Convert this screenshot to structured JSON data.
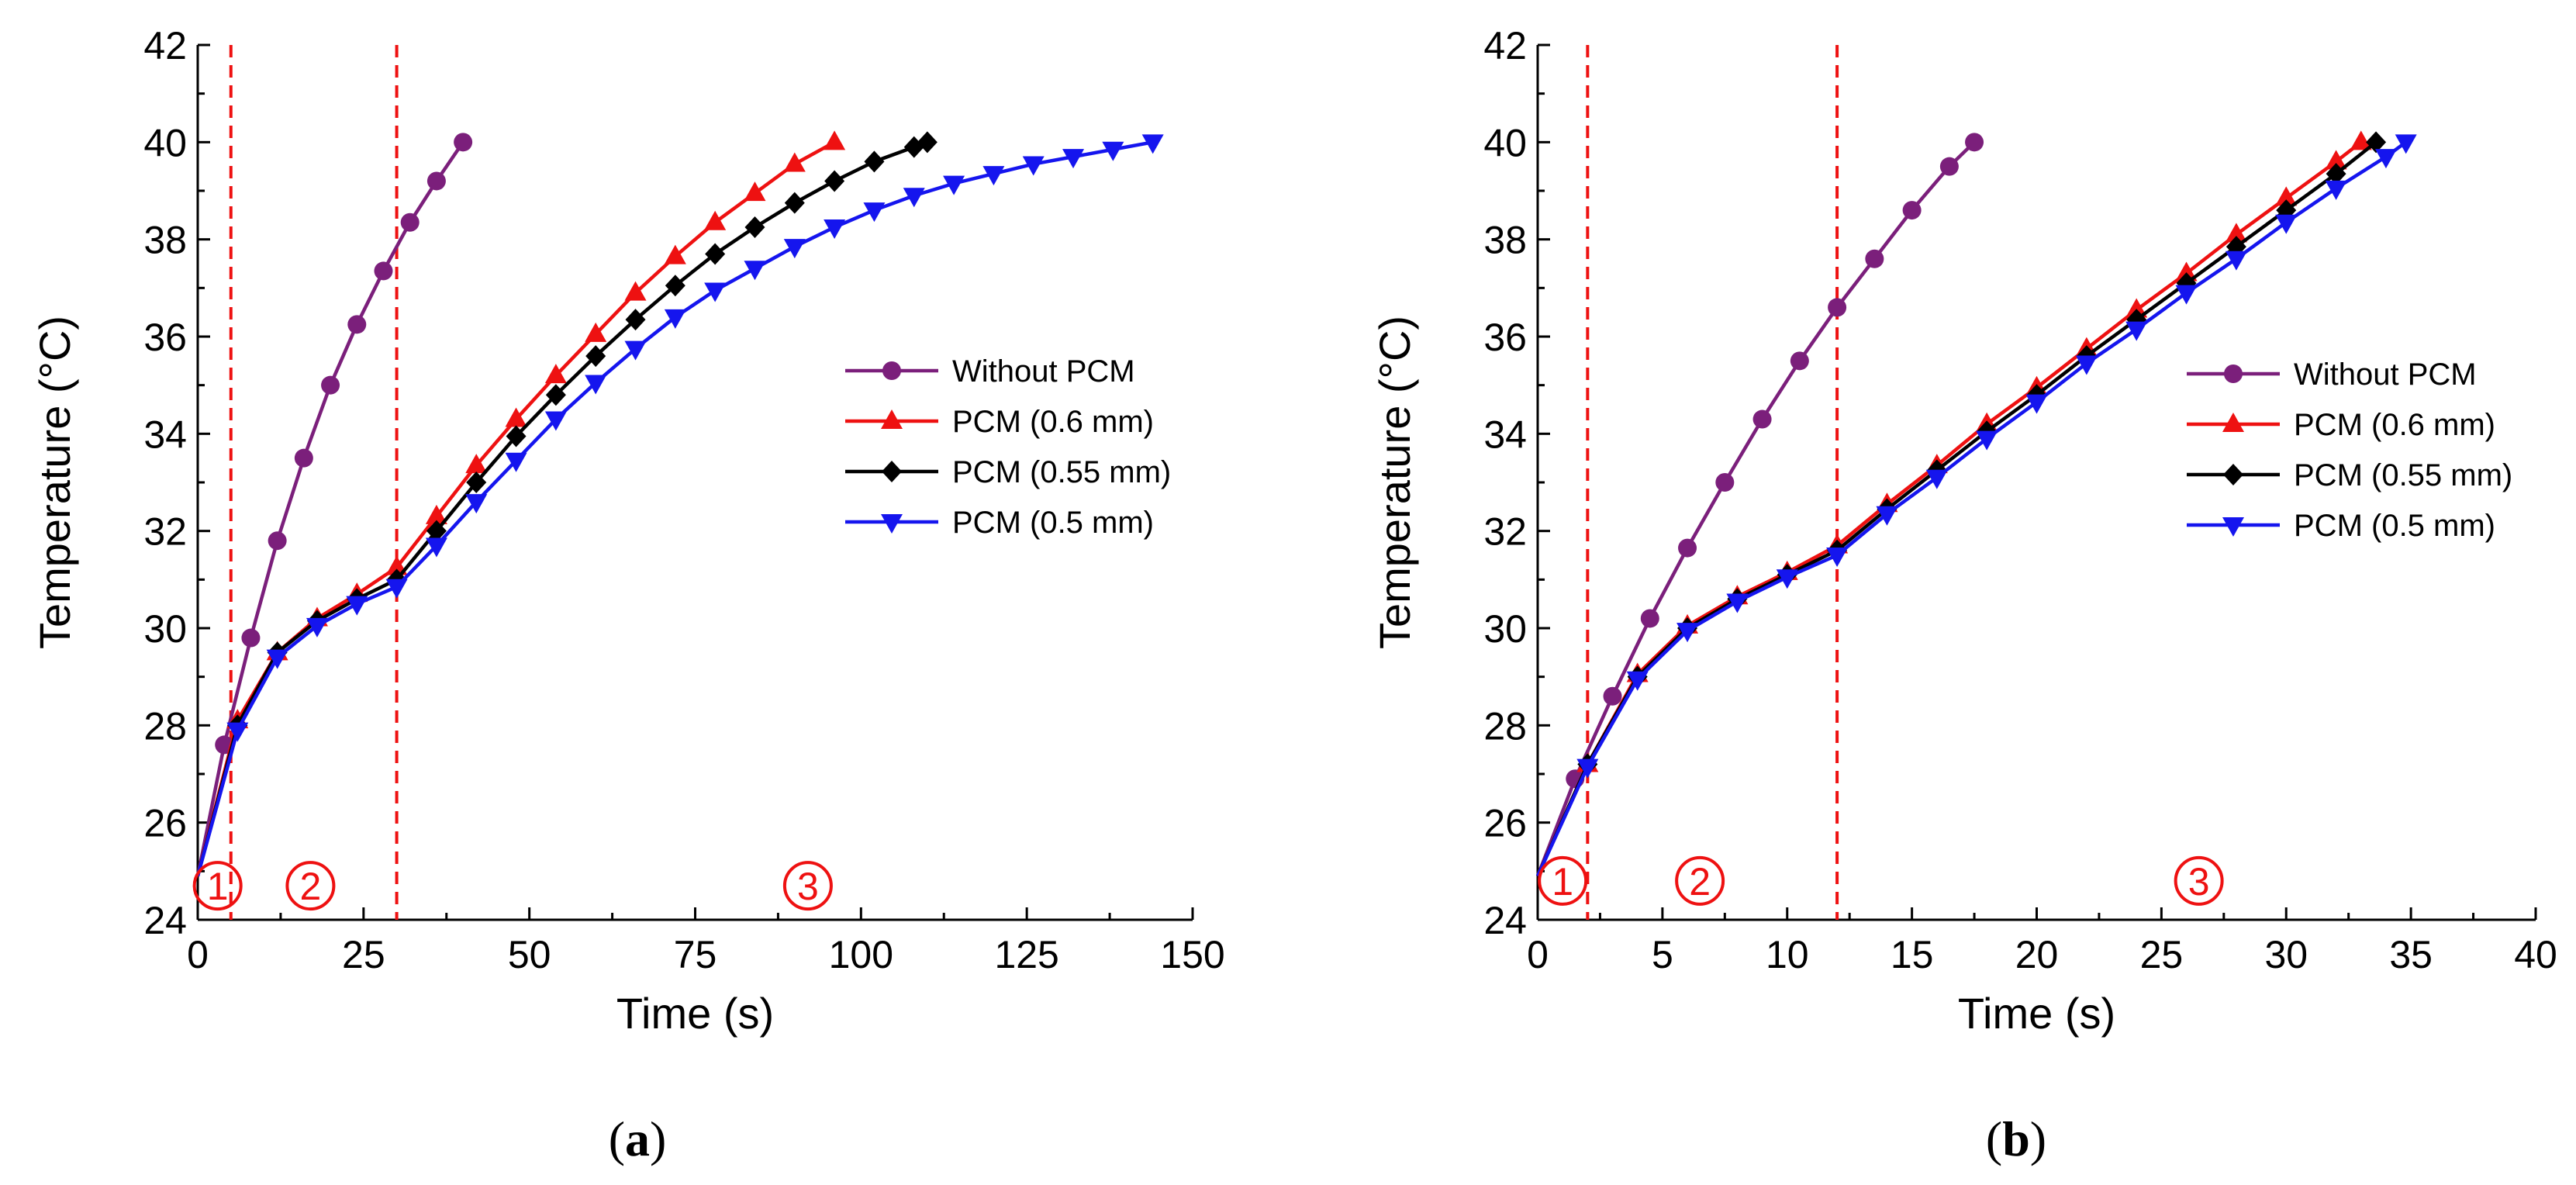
{
  "chart_data": [
    {
      "type": "line",
      "panel_label": {
        "open": "(",
        "letter": "a",
        "close": ")"
      },
      "xlabel": "Time (s)",
      "ylabel": "Temperature (°C)",
      "xlim": [
        0,
        150
      ],
      "ylim": [
        24,
        42
      ],
      "xticks": [
        0,
        25,
        50,
        75,
        100,
        125,
        150
      ],
      "yticks": [
        24,
        26,
        28,
        30,
        32,
        34,
        36,
        38,
        40,
        42
      ],
      "grid": false,
      "legend_position": "right-middle",
      "dashed_lines_x": [
        5,
        30
      ],
      "regions": [
        {
          "label": "1",
          "x": 3,
          "y": 24.7
        },
        {
          "label": "2",
          "x": 17,
          "y": 24.7
        },
        {
          "label": "3",
          "x": 92,
          "y": 24.7
        }
      ],
      "series": [
        {
          "name": "Without PCM",
          "color": "#7b1f7b",
          "marker": "circle",
          "x": [
            0,
            4,
            8,
            12,
            16,
            20,
            24,
            28,
            32,
            36,
            40
          ],
          "y": [
            24.9,
            27.6,
            29.8,
            31.8,
            33.5,
            35.0,
            36.25,
            37.35,
            38.35,
            39.2,
            40.0
          ]
        },
        {
          "name": "PCM (0.6 mm)",
          "color": "#ee1111",
          "marker": "triangle-up",
          "x": [
            0,
            6,
            12,
            18,
            24,
            30,
            36,
            42,
            48,
            54,
            60,
            66,
            72,
            78,
            84,
            90,
            96
          ],
          "y": [
            24.9,
            28.1,
            29.5,
            30.2,
            30.7,
            31.25,
            32.3,
            33.35,
            34.3,
            35.2,
            36.05,
            36.9,
            37.65,
            38.35,
            38.95,
            39.55,
            40.0
          ]
        },
        {
          "name": "PCM (0.55 mm)",
          "color": "#000000",
          "marker": "diamond",
          "x": [
            0,
            6,
            12,
            18,
            24,
            30,
            36,
            42,
            48,
            54,
            60,
            66,
            72,
            78,
            84,
            90,
            96,
            102,
            108,
            110
          ],
          "y": [
            24.9,
            28.0,
            29.5,
            30.15,
            30.6,
            31.0,
            32.0,
            33.0,
            33.95,
            34.8,
            35.6,
            36.35,
            37.05,
            37.7,
            38.25,
            38.75,
            39.2,
            39.6,
            39.9,
            40.0
          ]
        },
        {
          "name": "PCM (0.5 mm)",
          "color": "#1515ee",
          "marker": "triangle-down",
          "x": [
            0,
            6,
            12,
            18,
            24,
            30,
            36,
            42,
            48,
            54,
            60,
            66,
            72,
            78,
            84,
            90,
            96,
            102,
            108,
            114,
            120,
            126,
            132,
            138,
            144
          ],
          "y": [
            24.9,
            27.9,
            29.4,
            30.05,
            30.5,
            30.85,
            31.7,
            32.6,
            33.45,
            34.3,
            35.05,
            35.75,
            36.4,
            36.95,
            37.4,
            37.85,
            38.25,
            38.6,
            38.9,
            39.15,
            39.35,
            39.55,
            39.7,
            39.85,
            40.0
          ]
        }
      ]
    },
    {
      "type": "line",
      "panel_label": {
        "open": "(",
        "letter": "b",
        "close": ")"
      },
      "xlabel": "Time (s)",
      "ylabel": "Temperature (°C)",
      "xlim": [
        0,
        40
      ],
      "ylim": [
        24,
        42
      ],
      "xticks": [
        0,
        5,
        10,
        15,
        20,
        25,
        30,
        35,
        40
      ],
      "yticks": [
        24,
        26,
        28,
        30,
        32,
        34,
        36,
        38,
        40,
        42
      ],
      "grid": false,
      "legend_position": "right-middle",
      "dashed_lines_x": [
        2,
        12
      ],
      "regions": [
        {
          "label": "1",
          "x": 1,
          "y": 24.8
        },
        {
          "label": "2",
          "x": 6.5,
          "y": 24.8
        },
        {
          "label": "3",
          "x": 26.5,
          "y": 24.8
        }
      ],
      "series": [
        {
          "name": "Without PCM",
          "color": "#7b1f7b",
          "marker": "circle",
          "x": [
            0,
            1.5,
            3,
            4.5,
            6,
            7.5,
            9,
            10.5,
            12,
            13.5,
            15,
            16.5,
            17.5
          ],
          "y": [
            24.9,
            26.9,
            28.6,
            30.2,
            31.65,
            33.0,
            34.3,
            35.5,
            36.6,
            37.6,
            38.6,
            39.5,
            40.0
          ]
        },
        {
          "name": "PCM (0.6 mm)",
          "color": "#ee1111",
          "marker": "triangle-up",
          "x": [
            0,
            2,
            4,
            6,
            8,
            10,
            12,
            14,
            16,
            18,
            20,
            22,
            24,
            26,
            28,
            30,
            32,
            33
          ],
          "y": [
            24.9,
            27.2,
            29.05,
            30.05,
            30.65,
            31.15,
            31.7,
            32.55,
            33.35,
            34.2,
            34.95,
            35.75,
            36.55,
            37.3,
            38.1,
            38.85,
            39.6,
            40.0
          ]
        },
        {
          "name": "PCM (0.55 mm)",
          "color": "#000000",
          "marker": "diamond",
          "x": [
            0,
            2,
            4,
            6,
            8,
            10,
            12,
            14,
            16,
            18,
            20,
            22,
            24,
            26,
            28,
            30,
            32,
            33.6
          ],
          "y": [
            24.9,
            27.2,
            29.0,
            30.0,
            30.6,
            31.1,
            31.6,
            32.45,
            33.25,
            34.05,
            34.8,
            35.6,
            36.35,
            37.1,
            37.85,
            38.6,
            39.35,
            40.0
          ]
        },
        {
          "name": "PCM (0.5 mm)",
          "color": "#1515ee",
          "marker": "triangle-down",
          "x": [
            0,
            2,
            4,
            6,
            8,
            10,
            12,
            14,
            16,
            18,
            20,
            22,
            24,
            26,
            28,
            30,
            32,
            34,
            34.8
          ],
          "y": [
            24.9,
            27.15,
            28.95,
            29.95,
            30.55,
            31.05,
            31.5,
            32.35,
            33.1,
            33.9,
            34.65,
            35.45,
            36.15,
            36.9,
            37.6,
            38.35,
            39.05,
            39.7,
            40.0
          ]
        }
      ]
    }
  ]
}
